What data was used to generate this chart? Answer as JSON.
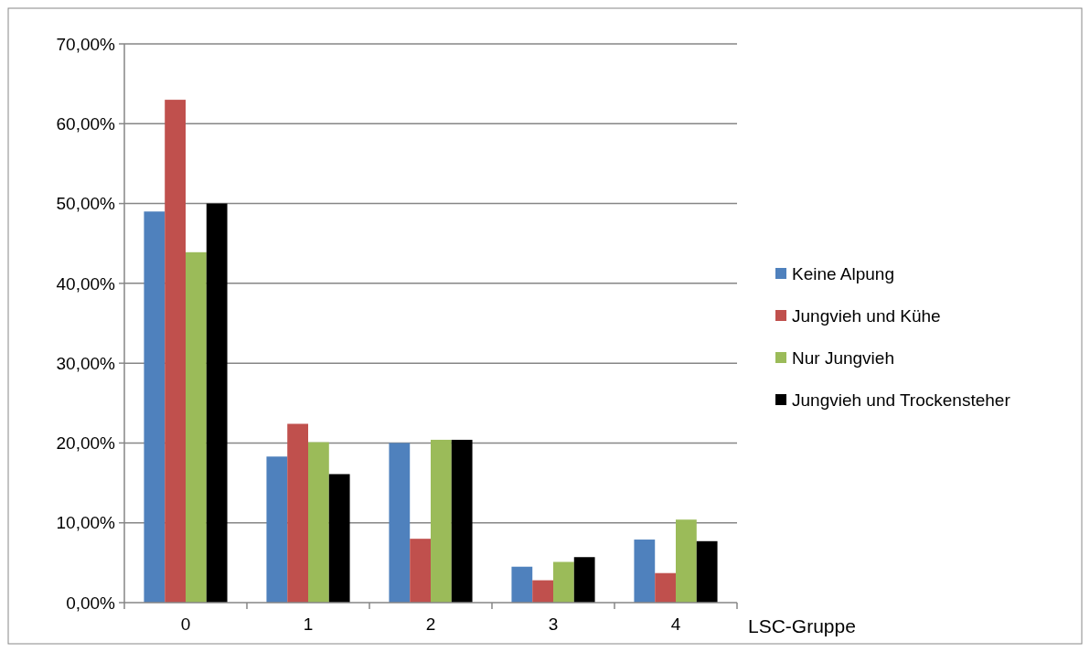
{
  "chart_data": {
    "type": "bar",
    "xlabel": "LSC-Gruppe",
    "categories": [
      "0",
      "1",
      "2",
      "3",
      "4"
    ],
    "series": [
      {
        "name": "Keine Alpung",
        "color": "#4f81bd",
        "values": [
          49.0,
          18.3,
          20.0,
          4.5,
          7.9
        ]
      },
      {
        "name": "Jungvieh und Kühe",
        "color": "#c0504d",
        "values": [
          63.0,
          22.4,
          8.0,
          2.8,
          3.7
        ]
      },
      {
        "name": "Nur Jungvieh",
        "color": "#9bbb59",
        "values": [
          43.9,
          20.1,
          20.4,
          5.1,
          10.4
        ]
      },
      {
        "name": "Jungvieh und Trockensteher",
        "color": "#000000",
        "values": [
          50.0,
          16.1,
          20.4,
          5.7,
          7.7
        ]
      }
    ],
    "ylim": [
      0,
      70
    ],
    "yticks": [
      {
        "value": 0,
        "label": "0,00%"
      },
      {
        "value": 10,
        "label": "10,00%"
      },
      {
        "value": 20,
        "label": "20,00%"
      },
      {
        "value": 30,
        "label": "30,00%"
      },
      {
        "value": 40,
        "label": "40,00%"
      },
      {
        "value": 50,
        "label": "50,00%"
      },
      {
        "value": 60,
        "label": "60,00%"
      },
      {
        "value": 70,
        "label": "70,00%"
      }
    ],
    "grid": "y",
    "legend": "right"
  }
}
